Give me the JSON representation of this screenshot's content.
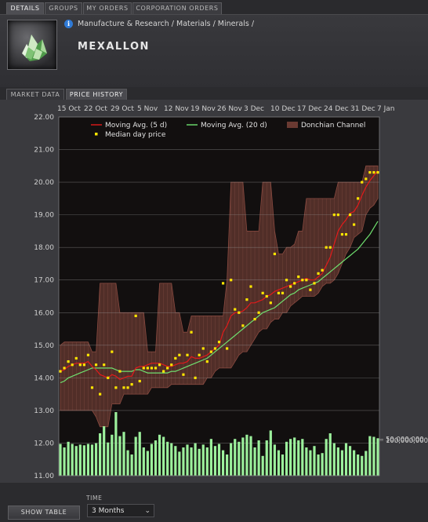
{
  "top_tabs": [
    "DETAILS",
    "GROUPS",
    "MY ORDERS",
    "CORPORATION ORDERS"
  ],
  "breadcrumb": "Manufacture & Research / Materials / Minerals /",
  "item_name": "MEXALLON",
  "info_icon_glyph": "i",
  "sub_tabs": [
    "MARKET DATA",
    "PRICE HISTORY"
  ],
  "bottom": {
    "show_table": "SHOW TABLE",
    "time_label": "TIME",
    "time_value": "3 Months",
    "chevron": "⌄"
  },
  "colors": {
    "ma5": "#e21a1a",
    "ma20": "#6fe06f",
    "donchian": "#6a3a32",
    "median": "#ffe600",
    "volume": "#9cf09c",
    "plot_bg": "#120f0f"
  },
  "chart_data": {
    "type": "line",
    "x_tick_labels": [
      "15 Oct",
      "22 Oct",
      "29 Oct",
      "5 Nov",
      "12 Nov",
      "19 Nov",
      "26 Nov",
      "3 Dec",
      "10 Dec",
      "17 Dec",
      "24 Dec",
      "31 Dec",
      "7 Jan"
    ],
    "x_tick_labels_display": [
      "15 Oct",
      "22 Oct",
      "29 Oct",
      "5 Nov",
      "12 Nov",
      "19 Nov",
      "26 Nov",
      "3 Dec",
      "10 Dec",
      "17 Dec",
      "24 Dec",
      "31 Dec",
      "7 Jan"
    ],
    "y_tick_labels": [
      "22.00",
      "21.00",
      "20.00",
      "19.00",
      "18.00",
      "17.00",
      "16.00",
      "15.00",
      "14.00",
      "13.00",
      "12.00",
      "11.00"
    ],
    "ylim": [
      11,
      22
    ],
    "volume_tick_labels": [
      "100,000,000",
      "50,000,000"
    ],
    "legend": [
      "Moving Avg. (5 d)",
      "Moving Avg. (20 d)",
      "Donchian Channel",
      "Median day price"
    ],
    "legend_position": "top",
    "grid": true,
    "median": [
      14.2,
      14.3,
      14.5,
      14.4,
      14.6,
      14.4,
      14.4,
      14.7,
      13.7,
      14.4,
      13.5,
      14.4,
      14.0,
      14.8,
      13.7,
      14.2,
      13.7,
      13.7,
      13.8,
      15.9,
      13.9,
      14.3,
      14.3,
      14.3,
      14.3,
      14.4,
      14.2,
      14.3,
      14.4,
      14.6,
      14.7,
      14.1,
      14.7,
      15.4,
      14.0,
      14.7,
      14.9,
      14.5,
      14.8,
      14.9,
      15.1,
      16.9,
      14.9,
      17.0,
      16.1,
      16.0,
      15.6,
      16.4,
      16.8,
      15.8,
      16.0,
      16.6,
      16.5,
      16.3,
      17.8,
      16.6,
      16.6,
      17.0,
      16.8,
      16.9,
      17.1,
      17.0,
      17.0,
      16.7,
      16.9,
      17.2,
      17.3,
      18.0,
      18.0,
      19.0,
      19.0,
      18.4,
      18.4,
      19.0,
      18.7,
      19.5,
      20.0,
      20.1,
      20.3,
      20.3,
      20.3
    ],
    "ma5": [
      14.2,
      14.25,
      14.35,
      14.4,
      14.45,
      14.45,
      14.45,
      14.5,
      14.35,
      14.25,
      14.1,
      14.05,
      14.0,
      14.1,
      14.05,
      13.95,
      14.0,
      14.05,
      14.05,
      14.3,
      14.35,
      14.35,
      14.4,
      14.45,
      14.45,
      14.45,
      14.4,
      14.35,
      14.35,
      14.4,
      14.45,
      14.45,
      14.5,
      14.65,
      14.6,
      14.6,
      14.65,
      14.7,
      14.8,
      14.9,
      15.0,
      15.4,
      15.6,
      15.9,
      16.0,
      16.0,
      16.05,
      16.15,
      16.3,
      16.3,
      16.35,
      16.4,
      16.5,
      16.55,
      16.65,
      16.7,
      16.75,
      16.8,
      16.85,
      16.9,
      16.95,
      17.0,
      17.05,
      17.0,
      17.0,
      17.1,
      17.2,
      17.45,
      17.7,
      18.1,
      18.5,
      18.7,
      18.85,
      19.05,
      19.1,
      19.3,
      19.6,
      19.85,
      20.05,
      20.2,
      20.35
    ],
    "ma20": [
      13.85,
      13.9,
      14.0,
      14.05,
      14.1,
      14.15,
      14.2,
      14.25,
      14.3,
      14.3,
      14.3,
      14.3,
      14.3,
      14.3,
      14.25,
      14.2,
      14.2,
      14.2,
      14.2,
      14.25,
      14.25,
      14.2,
      14.15,
      14.15,
      14.15,
      14.15,
      14.15,
      14.15,
      14.2,
      14.2,
      14.25,
      14.3,
      14.35,
      14.4,
      14.45,
      14.5,
      14.55,
      14.6,
      14.7,
      14.8,
      14.9,
      15.0,
      15.1,
      15.2,
      15.3,
      15.4,
      15.5,
      15.6,
      15.7,
      15.8,
      15.9,
      16.0,
      16.05,
      16.1,
      16.15,
      16.25,
      16.35,
      16.45,
      16.55,
      16.6,
      16.7,
      16.75,
      16.8,
      16.85,
      16.9,
      16.95,
      17.05,
      17.15,
      17.25,
      17.35,
      17.45,
      17.55,
      17.65,
      17.75,
      17.85,
      17.95,
      18.1,
      18.25,
      18.4,
      18.6,
      18.8
    ],
    "donchian_upper": [
      15.0,
      15.1,
      15.1,
      15.1,
      15.1,
      15.1,
      15.1,
      15.1,
      14.8,
      14.8,
      16.9,
      16.9,
      16.9,
      16.9,
      16.9,
      16.0,
      16.0,
      16.0,
      16.0,
      16.0,
      16.0,
      16.0,
      14.8,
      14.8,
      14.8,
      16.9,
      16.9,
      16.9,
      16.9,
      16.0,
      16.0,
      15.4,
      15.4,
      15.9,
      15.9,
      15.9,
      15.9,
      15.9,
      15.9,
      15.9,
      15.9,
      15.9,
      17.0,
      20.0,
      20.0,
      20.0,
      20.0,
      18.5,
      18.5,
      18.5,
      18.5,
      20.0,
      20.0,
      20.0,
      18.5,
      17.8,
      17.8,
      18.0,
      18.0,
      18.1,
      18.5,
      18.5,
      19.5,
      19.5,
      19.5,
      19.5,
      19.5,
      19.5,
      19.5,
      19.5,
      20.0,
      20.0,
      20.0,
      20.0,
      20.0,
      20.0,
      20.0,
      20.5,
      20.5,
      20.5,
      20.5
    ],
    "donchian_lower": [
      13.0,
      13.0,
      13.0,
      13.0,
      13.0,
      13.0,
      13.0,
      13.0,
      13.0,
      12.8,
      12.5,
      12.5,
      12.5,
      13.2,
      13.2,
      13.2,
      13.5,
      13.5,
      13.5,
      13.5,
      13.5,
      13.5,
      13.5,
      13.7,
      13.7,
      13.7,
      13.7,
      13.7,
      13.8,
      13.8,
      13.8,
      13.8,
      13.8,
      13.8,
      13.8,
      13.8,
      13.8,
      14.0,
      14.0,
      14.2,
      14.3,
      14.3,
      14.3,
      14.3,
      14.5,
      14.7,
      14.8,
      14.8,
      15.0,
      15.2,
      15.4,
      15.5,
      15.5,
      15.7,
      15.8,
      15.8,
      16.0,
      16.0,
      16.2,
      16.3,
      16.4,
      16.5,
      16.5,
      16.5,
      16.5,
      16.6,
      16.8,
      16.9,
      16.9,
      17.0,
      17.2,
      17.5,
      17.8,
      18.0,
      18.3,
      18.4,
      18.5,
      19.0,
      19.2,
      19.3,
      19.5
    ],
    "volume_relative": [
      0.45,
      0.4,
      0.48,
      0.45,
      0.42,
      0.44,
      0.43,
      0.45,
      0.44,
      0.46,
      0.6,
      0.7,
      0.47,
      0.58,
      0.9,
      0.56,
      0.62,
      0.36,
      0.3,
      0.55,
      0.62,
      0.4,
      0.35,
      0.45,
      0.5,
      0.58,
      0.55,
      0.48,
      0.46,
      0.42,
      0.34,
      0.4,
      0.44,
      0.4,
      0.46,
      0.38,
      0.44,
      0.4,
      0.52,
      0.42,
      0.45,
      0.36,
      0.3,
      0.46,
      0.52,
      0.48,
      0.54,
      0.58,
      0.56,
      0.4,
      0.5,
      0.28,
      0.5,
      0.64,
      0.44,
      0.36,
      0.3,
      0.48,
      0.52,
      0.54,
      0.5,
      0.52,
      0.4,
      0.36,
      0.42,
      0.3,
      0.32,
      0.52,
      0.6,
      0.46,
      0.4,
      0.36,
      0.46,
      0.42,
      0.36,
      0.3,
      0.28,
      0.35,
      0.56,
      0.55,
      0.53
    ]
  }
}
